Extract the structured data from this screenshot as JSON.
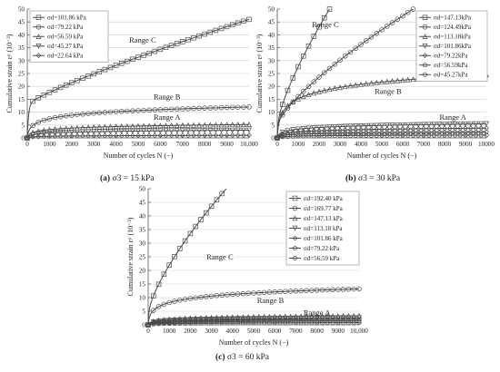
{
  "chart_data": [
    {
      "type": "line",
      "caption_letter": "(a)",
      "caption_text": "σ3 = 15 kPa",
      "xlabel": "Number of cycles N (−)",
      "ylabel": "Cumulative strain εᵖ (10⁻³)",
      "xlim": [
        0,
        10000
      ],
      "ylim": [
        0,
        50
      ],
      "xticks": [
        "0",
        "1000",
        "2000",
        "3000",
        "4000",
        "5000",
        "6000",
        "7000",
        "8000",
        "9000",
        "10,000"
      ],
      "yticks": [
        "0",
        "5",
        "10",
        "15",
        "20",
        "25",
        "30",
        "35",
        "40",
        "45",
        "50"
      ],
      "grid": true,
      "legend_position": "top-left",
      "annotations": [
        {
          "text": "Range C",
          "x": 5200,
          "y": 37
        },
        {
          "text": "Range B",
          "x": 6300,
          "y": 15
        },
        {
          "text": "Range A",
          "x": 6300,
          "y": 7
        }
      ],
      "series": [
        {
          "name": "σd=101.86 kPa",
          "marker": "square",
          "final": 46,
          "curve": "range-c"
        },
        {
          "name": "σd=79.22 kPa",
          "marker": "circle",
          "final": 12,
          "curve": "log"
        },
        {
          "name": "σd=56.59 kPa",
          "marker": "triangle-up",
          "final": 5.2,
          "curve": "log"
        },
        {
          "name": "σd=45.27 kPa",
          "marker": "triangle-down",
          "final": 3.0,
          "curve": "log"
        },
        {
          "name": "σd=22.64 kPa",
          "marker": "diamond",
          "final": 1.0,
          "curve": "log"
        }
      ]
    },
    {
      "type": "line",
      "caption_letter": "(b)",
      "caption_text": "σ3 = 30 kPa",
      "xlabel": "Number of cycles N (−)",
      "ylabel": "Cumulative strain εᵖ (10⁻³)",
      "xlim": [
        0,
        10000
      ],
      "ylim": [
        0,
        50
      ],
      "xticks": [
        "0",
        "1000",
        "2000",
        "3000",
        "4000",
        "5000",
        "6000",
        "7000",
        "8000",
        "9000",
        "10000"
      ],
      "yticks": [
        "0",
        "5",
        "10",
        "15",
        "20",
        "25",
        "30",
        "35",
        "40",
        "45",
        "50"
      ],
      "grid": true,
      "legend_position": "top-right",
      "annotations": [
        {
          "text": "Range C",
          "x": 2300,
          "y": 43
        },
        {
          "text": "Range B",
          "x": 5300,
          "y": 17
        },
        {
          "text": "Range A",
          "x": 8400,
          "y": 7
        }
      ],
      "series": [
        {
          "name": "σd=147.13kPa",
          "marker": "square",
          "final": 50,
          "end_x": 2500,
          "curve": "power"
        },
        {
          "name": "σd=124.49kPa",
          "marker": "circle",
          "final": 50,
          "end_x": 6500,
          "curve": "power"
        },
        {
          "name": "σd=113.18kPa",
          "marker": "triangle-up",
          "final": 24.5,
          "curve": "log"
        },
        {
          "name": "σd=101.86kPa",
          "marker": "triangle-down",
          "final": 5.5,
          "curve": "log"
        },
        {
          "name": "σd=79.22kPa",
          "marker": "diamond",
          "final": 3.8,
          "curve": "log"
        },
        {
          "name": "σd=56.59kPa",
          "marker": "pentagon",
          "final": 2.3,
          "curve": "log"
        },
        {
          "name": "σd=45.27kPa",
          "marker": "hexagon",
          "final": 1.1,
          "curve": "log"
        }
      ]
    },
    {
      "type": "line",
      "caption_letter": "(c)",
      "caption_text": "σ3 = 60 kPa",
      "xlabel": "Number of cycles N (−)",
      "ylabel": "Cumulative strain εᵖ (10⁻³)",
      "xlim": [
        0,
        10000
      ],
      "ylim": [
        0,
        50
      ],
      "xticks": [
        "0",
        "1000",
        "2000",
        "3000",
        "4000",
        "5000",
        "6000",
        "7000",
        "8000",
        "9000",
        "10,000"
      ],
      "yticks": [
        "0",
        "5",
        "10",
        "15",
        "20",
        "25",
        "30",
        "35",
        "40",
        "45",
        "50"
      ],
      "grid": true,
      "legend_position": "top-right",
      "annotations": [
        {
          "text": "Range C",
          "x": 3400,
          "y": 24
        },
        {
          "text": "Range B",
          "x": 5800,
          "y": 8
        },
        {
          "text": "Range A",
          "x": 8000,
          "y": 3.5
        }
      ],
      "series": [
        {
          "name": "σd=192.40 kPa",
          "marker": "square",
          "final": 50,
          "end_x": 3700,
          "curve": "sqrt"
        },
        {
          "name": "σd=169.77 kPa",
          "marker": "circle",
          "final": 13.2,
          "curve": "log"
        },
        {
          "name": "σd=147.13 kPa",
          "marker": "triangle-up",
          "final": 3.3,
          "curve": "log"
        },
        {
          "name": "σd=113.18 kPa",
          "marker": "triangle-down",
          "final": 2.6,
          "curve": "log"
        },
        {
          "name": "σd=101.86 kPa",
          "marker": "diamond",
          "final": 2.0,
          "curve": "log"
        },
        {
          "name": "σd=79.22 kPa",
          "marker": "pentagon",
          "final": 1.4,
          "curve": "log"
        },
        {
          "name": "σd=56.59 kPa",
          "marker": "hexagon",
          "final": 0.8,
          "curve": "log"
        }
      ]
    }
  ]
}
